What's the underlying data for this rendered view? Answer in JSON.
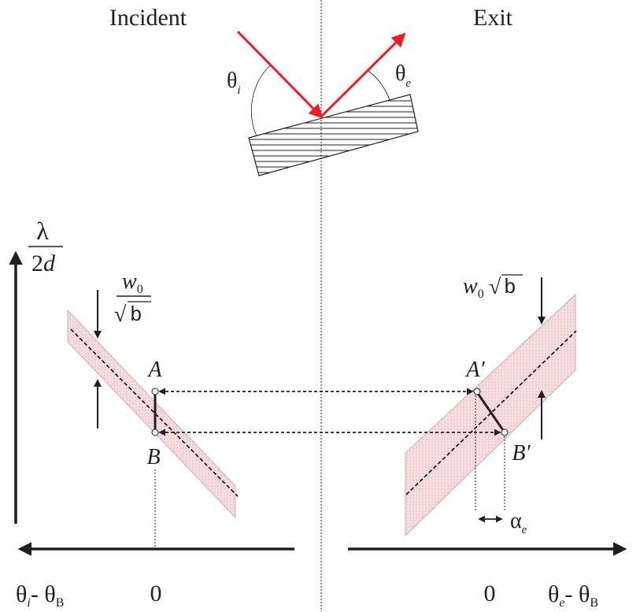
{
  "header": {
    "incident_label": "Incident",
    "exit_label": "Exit"
  },
  "crystal": {
    "theta_incident_symbol": "θ",
    "theta_incident_sub": "i",
    "theta_exit_symbol": "θ",
    "theta_exit_sub": "e",
    "beam_color": "#ee1c25"
  },
  "y_axis": {
    "numerator": "λ",
    "denominator_num": "2",
    "denominator_var": "d"
  },
  "incident_band": {
    "width_num_var": "w",
    "width_num_sub": "0",
    "width_den_root": "√",
    "width_den_var": "b",
    "point_a": "A",
    "point_b": "B",
    "fill_color": "#f6d8dc"
  },
  "exit_band": {
    "width_var": "w",
    "width_sub": "0",
    "width_root": "√",
    "width_b": "b",
    "point_a": "A′",
    "point_b": "B′",
    "alpha_symbol": "α",
    "alpha_sub": "e",
    "fill_color": "#f6d8dc"
  },
  "x_axis_left": {
    "theta": "θ",
    "sub_i": "i",
    "dash": "- ",
    "theta_b": "θ",
    "sub_b": "B",
    "zero": "0"
  },
  "x_axis_right": {
    "theta": "θ",
    "sub_e": "e",
    "dash": "- ",
    "theta_b": "θ",
    "sub_b": "B",
    "zero": "0"
  }
}
